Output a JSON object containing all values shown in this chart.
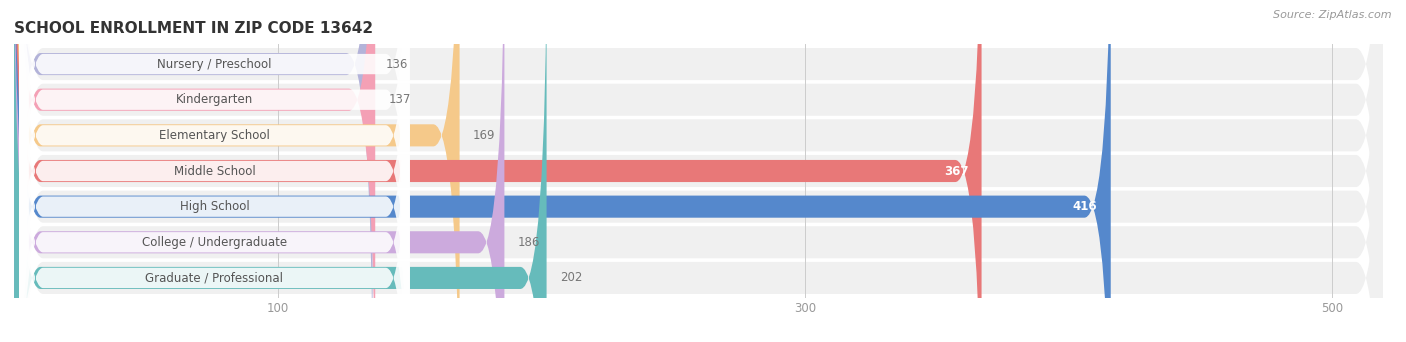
{
  "title": "SCHOOL ENROLLMENT IN ZIP CODE 13642",
  "source": "Source: ZipAtlas.com",
  "categories": [
    "Nursery / Preschool",
    "Kindergarten",
    "Elementary School",
    "Middle School",
    "High School",
    "College / Undergraduate",
    "Graduate / Professional"
  ],
  "values": [
    136,
    137,
    169,
    367,
    416,
    186,
    202
  ],
  "bar_colors": [
    "#b3b3d9",
    "#f4a0b5",
    "#f5c98a",
    "#e87878",
    "#5588cc",
    "#ccaadd",
    "#66bbbb"
  ],
  "label_color": "#555555",
  "value_color_inside": "#ffffff",
  "value_color_outside": "#777777",
  "xlim_min": 0,
  "xlim_max": 520,
  "xticks": [
    100,
    300,
    500
  ],
  "title_fontsize": 11,
  "label_fontsize": 8.5,
  "value_fontsize": 8.5,
  "source_fontsize": 8,
  "background_color": "#ffffff",
  "row_bg_even": "#f5f5f5",
  "row_bg_odd": "#ebebeb"
}
